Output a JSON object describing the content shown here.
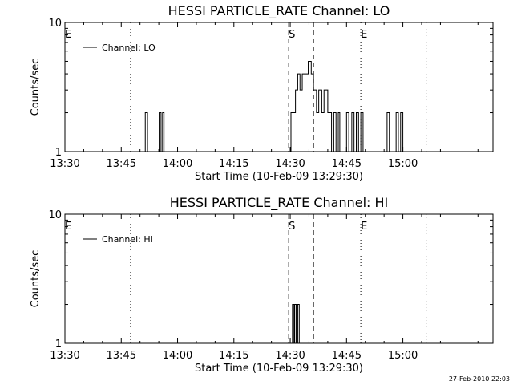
{
  "chart_data": [
    {
      "type": "line",
      "title": "HESSI PARTICLE_RATE Channel: LO",
      "xlabel": "Start Time (10-Feb-09 13:29:30)",
      "ylabel": "Counts/sec",
      "y_scale": "log",
      "ylim": [
        1,
        10
      ],
      "y_tick_labels": [
        "1",
        "10"
      ],
      "x_unit": "minutes after 13:30",
      "xlim": [
        0,
        114
      ],
      "x_tick_labels": [
        "13:30",
        "13:45",
        "14:00",
        "14:15",
        "14:30",
        "14:45",
        "15:00"
      ],
      "x_tick_values": [
        0,
        15,
        30,
        45,
        60,
        75,
        90
      ],
      "grid": false,
      "legend_position": "top-left",
      "legend": "Channel: LO",
      "series": [
        {
          "name": "Channel: LO",
          "points": [
            [
              0,
              1
            ],
            [
              20.8,
              1
            ],
            [
              21.4,
              2
            ],
            [
              22.0,
              1
            ],
            [
              24.8,
              1
            ],
            [
              25.1,
              2
            ],
            [
              25.6,
              1
            ],
            [
              26.0,
              2
            ],
            [
              26.4,
              1
            ],
            [
              60.0,
              1
            ],
            [
              60.2,
              2
            ],
            [
              61.4,
              3
            ],
            [
              62.0,
              4
            ],
            [
              62.6,
              3
            ],
            [
              63.2,
              4
            ],
            [
              64.0,
              4
            ],
            [
              64.8,
              5
            ],
            [
              65.6,
              4
            ],
            [
              66.2,
              3
            ],
            [
              67.0,
              2
            ],
            [
              67.6,
              3
            ],
            [
              68.4,
              2
            ],
            [
              69.0,
              3
            ],
            [
              70.0,
              2
            ],
            [
              70.4,
              2
            ],
            [
              71.0,
              1
            ],
            [
              71.6,
              2
            ],
            [
              72.2,
              1
            ],
            [
              72.8,
              2
            ],
            [
              73.2,
              1
            ],
            [
              74.6,
              1
            ],
            [
              75.0,
              2
            ],
            [
              75.6,
              1
            ],
            [
              76.4,
              2
            ],
            [
              77.0,
              1
            ],
            [
              77.6,
              2
            ],
            [
              78.2,
              1
            ],
            [
              78.8,
              2
            ],
            [
              79.4,
              1
            ],
            [
              85.4,
              1
            ],
            [
              85.8,
              2
            ],
            [
              86.4,
              1
            ],
            [
              87.8,
              1
            ],
            [
              88.2,
              2
            ],
            [
              88.8,
              1
            ],
            [
              89.4,
              2
            ],
            [
              90.0,
              1
            ],
            [
              114,
              1
            ]
          ]
        }
      ],
      "markers": [
        {
          "label": "E",
          "x": 0,
          "style": "dotted"
        },
        {
          "label": "",
          "x": 17.5,
          "style": "dotted"
        },
        {
          "label": "S",
          "x": 59.6,
          "style": "dashed"
        },
        {
          "label": "",
          "x": 66.2,
          "style": "dashed"
        },
        {
          "label": "E",
          "x": 78.8,
          "style": "dotted"
        },
        {
          "label": "",
          "x": 96.2,
          "style": "dotted"
        }
      ]
    },
    {
      "type": "line",
      "title": "HESSI PARTICLE_RATE Channel: HI",
      "xlabel": "Start Time (10-Feb-09 13:29:30)",
      "ylabel": "Counts/sec",
      "y_scale": "log",
      "ylim": [
        1,
        10
      ],
      "y_tick_labels": [
        "1",
        "10"
      ],
      "x_unit": "minutes after 13:30",
      "xlim": [
        0,
        114
      ],
      "x_tick_labels": [
        "13:30",
        "13:45",
        "14:00",
        "14:15",
        "14:30",
        "14:45",
        "15:00"
      ],
      "x_tick_values": [
        0,
        15,
        30,
        45,
        60,
        75,
        90
      ],
      "grid": false,
      "legend_position": "top-left",
      "legend": "Channel: HI",
      "series": [
        {
          "name": "Channel: HI",
          "points": [
            [
              0,
              1
            ],
            [
              60.2,
              1
            ],
            [
              60.6,
              2
            ],
            [
              61.0,
              1
            ],
            [
              61.2,
              2
            ],
            [
              61.6,
              1
            ],
            [
              62.0,
              2
            ],
            [
              62.4,
              1
            ],
            [
              114,
              1
            ]
          ]
        }
      ],
      "markers": [
        {
          "label": "E",
          "x": 0,
          "style": "dotted"
        },
        {
          "label": "",
          "x": 17.5,
          "style": "dotted"
        },
        {
          "label": "S",
          "x": 59.6,
          "style": "dashed"
        },
        {
          "label": "",
          "x": 66.2,
          "style": "dashed"
        },
        {
          "label": "E",
          "x": 78.8,
          "style": "dotted"
        },
        {
          "label": "",
          "x": 96.2,
          "style": "dotted"
        }
      ]
    }
  ],
  "footer_timestamp": "27-Feb-2010 22:03"
}
